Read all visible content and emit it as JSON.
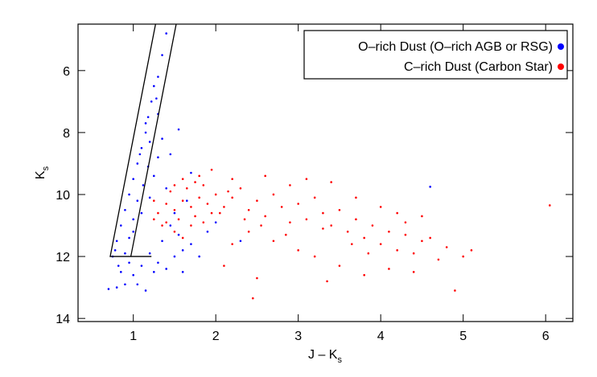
{
  "chart_data": {
    "type": "scatter",
    "xlabel": "J – K",
    "xlabel_sub": "s",
    "ylabel": "K",
    "ylabel_sub": "s",
    "xlim": [
      0.33,
      6.33
    ],
    "ylim": [
      14.1,
      4.5
    ],
    "xticks": [
      1,
      2,
      3,
      4,
      5,
      6
    ],
    "yticks": [
      6,
      8,
      10,
      12,
      14
    ],
    "legend": "upper right",
    "boundary_lines": [
      {
        "x": [
          1.27,
          0.72,
          1.22
        ],
        "y": [
          4.5,
          12,
          12
        ]
      },
      {
        "x": [
          0.97,
          1.52
        ],
        "y": [
          12,
          4.5
        ]
      }
    ],
    "series": [
      {
        "name": "O–rich Dust (O–rich AGB or RSG)",
        "color": "#0000ff",
        "x": [
          0.75,
          0.8,
          0.85,
          0.9,
          0.95,
          1.0,
          1.05,
          1.1,
          1.15,
          1.18,
          1.22,
          1.25,
          1.3,
          0.9,
          1.0,
          1.1,
          1.2,
          1.25,
          1.3,
          1.35,
          1.4,
          1.5,
          1.55,
          1.6,
          1.45,
          1.35,
          1.2,
          1.1,
          1.0,
          0.9,
          0.8,
          0.7,
          1.15,
          1.05,
          0.95,
          0.85,
          1.25,
          1.3,
          1.4,
          1.5,
          1.7,
          1.8,
          1.65,
          1.45,
          1.55,
          1.3,
          1.0,
          0.95,
          1.05,
          1.12,
          1.18,
          1.08,
          1.2,
          1.28,
          1.35,
          1.4,
          1.15,
          0.82,
          0.78,
          1.6,
          1.9,
          2.0,
          2.3,
          1.7,
          4.6
        ],
        "values": [
          12.0,
          11.5,
          11,
          10.5,
          10,
          9.5,
          9,
          8.5,
          8,
          7.5,
          7,
          6.5,
          6.2,
          11.9,
          11.2,
          10.6,
          10.1,
          9.4,
          8.8,
          8.2,
          9.8,
          10.6,
          11.3,
          11.8,
          11.0,
          11.5,
          11.9,
          12.3,
          12.6,
          12.9,
          13.0,
          13.05,
          13.1,
          12.9,
          12.2,
          12.5,
          12.5,
          12.2,
          12.4,
          12.0,
          11.6,
          12.0,
          10.2,
          8.7,
          7.9,
          7.4,
          10.8,
          11.4,
          10.2,
          9.7,
          9.1,
          8.7,
          8.3,
          6.9,
          5.5,
          4.8,
          7.7,
          12.3,
          11.8,
          12.5,
          11.2,
          10.9,
          11.5,
          9.3,
          9.75
        ]
      },
      {
        "name": "C–rich Dust (Carbon Star)",
        "color": "#ff0000",
        "x": [
          1.3,
          1.4,
          1.5,
          1.6,
          1.7,
          1.8,
          1.9,
          1.35,
          1.45,
          1.55,
          1.65,
          1.75,
          1.85,
          1.95,
          1.25,
          1.5,
          1.7,
          1.8,
          1.6,
          2.0,
          2.1,
          2.2,
          2.3,
          2.4,
          2.5,
          2.6,
          2.7,
          2.8,
          2.9,
          3.0,
          3.1,
          3.2,
          3.3,
          3.4,
          3.5,
          3.6,
          3.7,
          3.8,
          3.9,
          4.0,
          4.1,
          4.2,
          4.3,
          4.4,
          4.5,
          4.6,
          4.7,
          4.8,
          5.0,
          5.1,
          4.9,
          2.5,
          2.45,
          2.2,
          2.4,
          2.7,
          3.0,
          3.2,
          3.5,
          3.8,
          4.1,
          4.4,
          3.1,
          2.6,
          3.4,
          2.2,
          1.95,
          2.9,
          3.7,
          4.0,
          4.3,
          4.5,
          2.35,
          2.55,
          2.85,
          3.3,
          3.65,
          4.2,
          1.4,
          1.5,
          1.75,
          1.85,
          2.05,
          2.15,
          1.25,
          1.6,
          6.05,
          3.85,
          3.35,
          2.1
        ],
        "values": [
          10.6,
          10.3,
          10.5,
          10.2,
          10.4,
          10.1,
          10.3,
          11.0,
          9.9,
          10.8,
          9.8,
          10.7,
          9.7,
          10.6,
          10.2,
          11.2,
          11.0,
          9.4,
          9.5,
          10.0,
          10.4,
          10.1,
          9.8,
          10.5,
          10.2,
          10.7,
          10.0,
          10.4,
          10.9,
          10.3,
          10.8,
          10.1,
          10.6,
          11.0,
          10.5,
          11.2,
          10.8,
          11.4,
          11.0,
          11.6,
          11.2,
          11.8,
          11.3,
          11.9,
          11.5,
          11.4,
          12.1,
          11.7,
          12.0,
          11.8,
          13.1,
          12.7,
          13.35,
          11.6,
          11.2,
          11.5,
          11.8,
          12.0,
          12.3,
          12.6,
          12.4,
          12.5,
          9.5,
          9.4,
          9.6,
          9.5,
          9.2,
          9.7,
          10.1,
          10.4,
          10.9,
          10.7,
          10.8,
          11.0,
          11.3,
          11.1,
          11.6,
          10.6,
          10.9,
          9.7,
          9.6,
          10.9,
          10.6,
          9.9,
          10.8,
          11.4,
          10.35,
          11.9,
          12.8,
          12.3
        ]
      }
    ]
  }
}
